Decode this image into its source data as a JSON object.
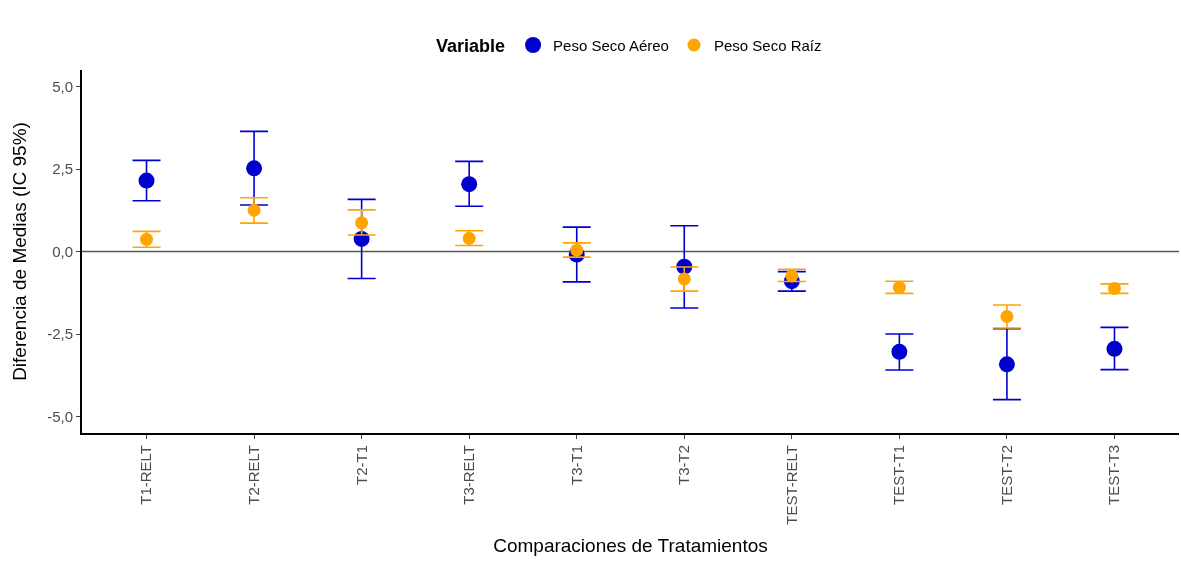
{
  "chart_data": {
    "type": "scatter",
    "xlabel": "Comparaciones de Tratamientos",
    "ylabel": "Diferencia de Medias (IC 95%)",
    "legend_title": "Variable",
    "legend": "top",
    "grid": false,
    "marker": "circle",
    "categories": [
      "T1-RELT",
      "T2-RELT",
      "T2-T1",
      "T3-RELT",
      "T3-T1",
      "T3-T2",
      "TEST-RELT",
      "TEST-T1",
      "TEST-T2",
      "TEST-T3"
    ],
    "ylim": [
      -5.5,
      5.5
    ],
    "yticks": [
      {
        "value": -5,
        "label": "-5,0"
      },
      {
        "value": -2.5,
        "label": "-2,5"
      },
      {
        "value": 0,
        "label": "0,0"
      },
      {
        "value": 2.5,
        "label": "2,5"
      },
      {
        "value": 5,
        "label": "5,0"
      }
    ],
    "ref_lines": [
      {
        "axis": "y",
        "value": 0,
        "color": "#595959"
      }
    ],
    "series": [
      {
        "name": "Peso Seco Aéreo",
        "color": "#0000cd",
        "values": [
          2.15,
          2.52,
          0.38,
          2.04,
          -0.09,
          -0.46,
          -0.9,
          -3.04,
          -3.42,
          -2.95
        ],
        "errors": [
          [
            1.54,
            2.76
          ],
          [
            1.41,
            3.64
          ],
          [
            -0.82,
            1.58
          ],
          [
            1.37,
            2.73
          ],
          [
            -0.92,
            0.74
          ],
          [
            -1.71,
            0.78
          ],
          [
            -1.2,
            -0.61
          ],
          [
            -3.59,
            -2.5
          ],
          [
            -4.49,
            -2.34
          ],
          [
            -3.58,
            -2.3
          ]
        ]
      },
      {
        "name": "Peso Seco Raíz",
        "color": "#ffa500",
        "values": [
          0.37,
          1.25,
          0.87,
          0.4,
          0.04,
          -0.83,
          -0.74,
          -1.09,
          -1.97,
          -1.12
        ],
        "errors": [
          [
            0.13,
            0.61
          ],
          [
            0.86,
            1.63
          ],
          [
            0.5,
            1.26
          ],
          [
            0.18,
            0.63
          ],
          [
            -0.17,
            0.26
          ],
          [
            -1.2,
            -0.47
          ],
          [
            -0.91,
            -0.54
          ],
          [
            -1.27,
            -0.9
          ],
          [
            -2.32,
            -1.62
          ],
          [
            -1.27,
            -0.98
          ]
        ]
      }
    ]
  }
}
